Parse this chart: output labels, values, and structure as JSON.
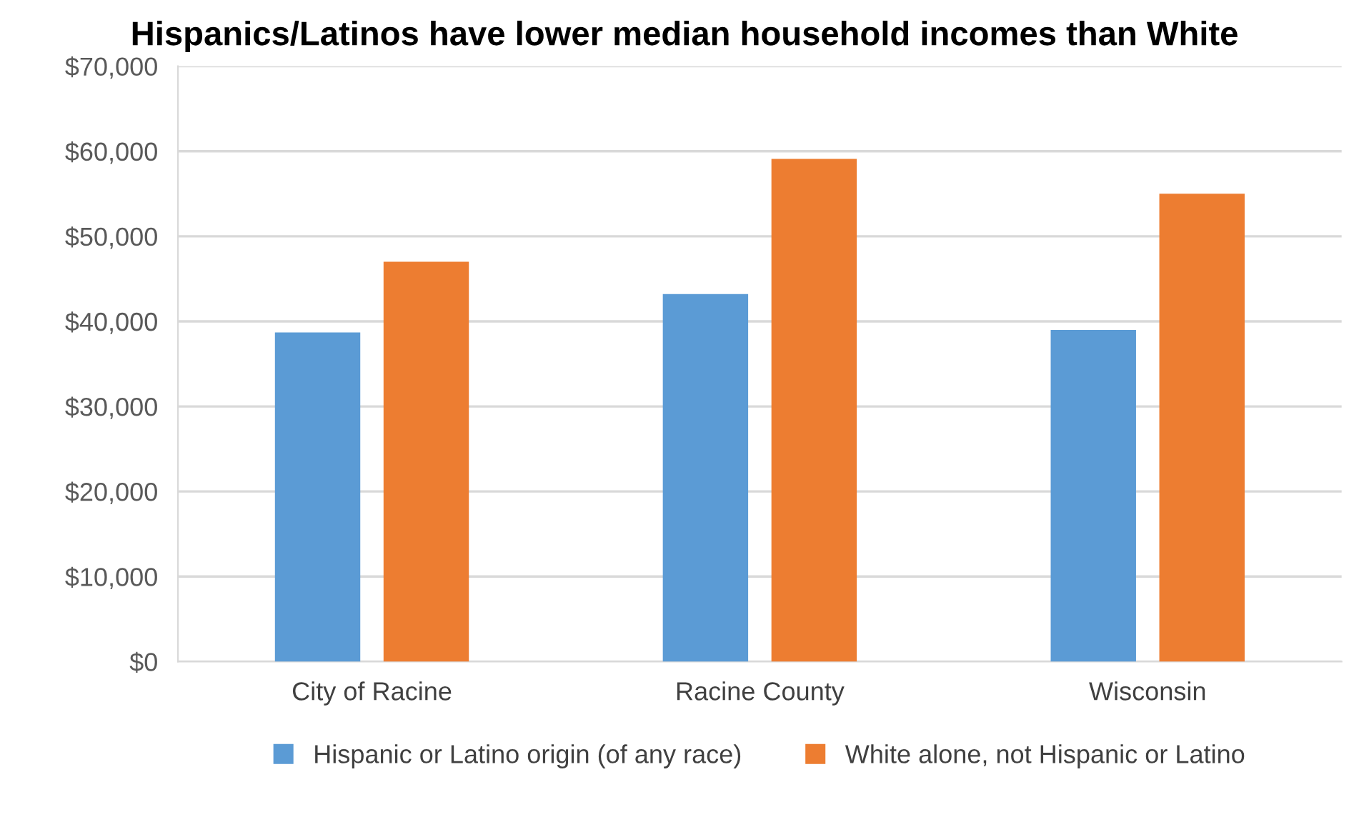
{
  "chart_data": {
    "type": "bar",
    "title": "Hispanics/Latinos have lower median household incomes than White",
    "categories": [
      "City of Racine",
      "Racine County",
      "Wisconsin"
    ],
    "series": [
      {
        "name": "Hispanic or Latino origin (of any race)",
        "color": "#5b9bd5",
        "values": [
          38700,
          43200,
          39000
        ]
      },
      {
        "name": "White alone, not Hispanic or Latino",
        "color": "#ed7d31",
        "values": [
          47000,
          59100,
          55000
        ]
      }
    ],
    "ylim": [
      0,
      70000
    ],
    "yticks": [
      {
        "value": 0,
        "label": "$0"
      },
      {
        "value": 10000,
        "label": "$10,000"
      },
      {
        "value": 20000,
        "label": "$20,000"
      },
      {
        "value": 30000,
        "label": "$30,000"
      },
      {
        "value": 40000,
        "label": "$40,000"
      },
      {
        "value": 50000,
        "label": "$50,000"
      },
      {
        "value": 60000,
        "label": "$60,000"
      },
      {
        "value": 70000,
        "label": "$70,000"
      }
    ],
    "grid": "y",
    "legend": "bottom"
  }
}
